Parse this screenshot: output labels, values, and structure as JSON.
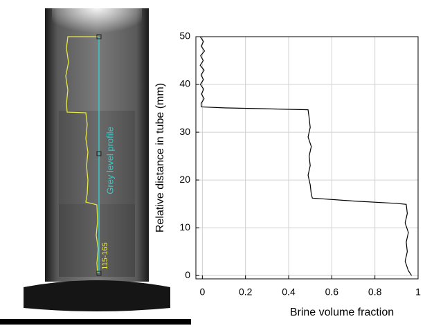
{
  "image_labels": {
    "profile_label": "Grey level profile",
    "range_label": "115-165"
  },
  "chart_data": {
    "type": "line",
    "x_label": "Brine volume fraction",
    "y_label": "Relative distance in tube (mm)",
    "x": [
      -0.01,
      0.005,
      -0.005,
      0.01,
      -0.008,
      0.004,
      -0.01,
      0.008,
      -0.006,
      0.005,
      -0.009,
      0.006,
      -0.004,
      0.008,
      -0.006,
      -0.005,
      0.1,
      0.3,
      0.49,
      0.495,
      0.5,
      0.49,
      0.505,
      0.495,
      0.5,
      0.49,
      0.5,
      0.505,
      0.51,
      0.7,
      0.9,
      0.945,
      0.95,
      0.94,
      0.955,
      0.945,
      0.95,
      0.94,
      0.955,
      0.97
    ],
    "series": [
      {
        "color": "#000000",
        "values": [
          50,
          49,
          48,
          47,
          46,
          45,
          44,
          43,
          42,
          41,
          40,
          39,
          38,
          37,
          36,
          35.3,
          35.1,
          34.9,
          34.7,
          33,
          31,
          29,
          27,
          25,
          23,
          21,
          19,
          17,
          16.2,
          15.6,
          15.1,
          14.9,
          13,
          11,
          9,
          7,
          5,
          3,
          1,
          0
        ]
      }
    ],
    "xlim": [
      -0.03,
      1
    ],
    "ylim": [
      -0.7,
      50
    ],
    "xticks": [
      0,
      0.2,
      0.4,
      0.6,
      0.8,
      1
    ],
    "yticks": [
      0,
      10,
      20,
      30,
      40,
      50
    ],
    "grid": true
  }
}
